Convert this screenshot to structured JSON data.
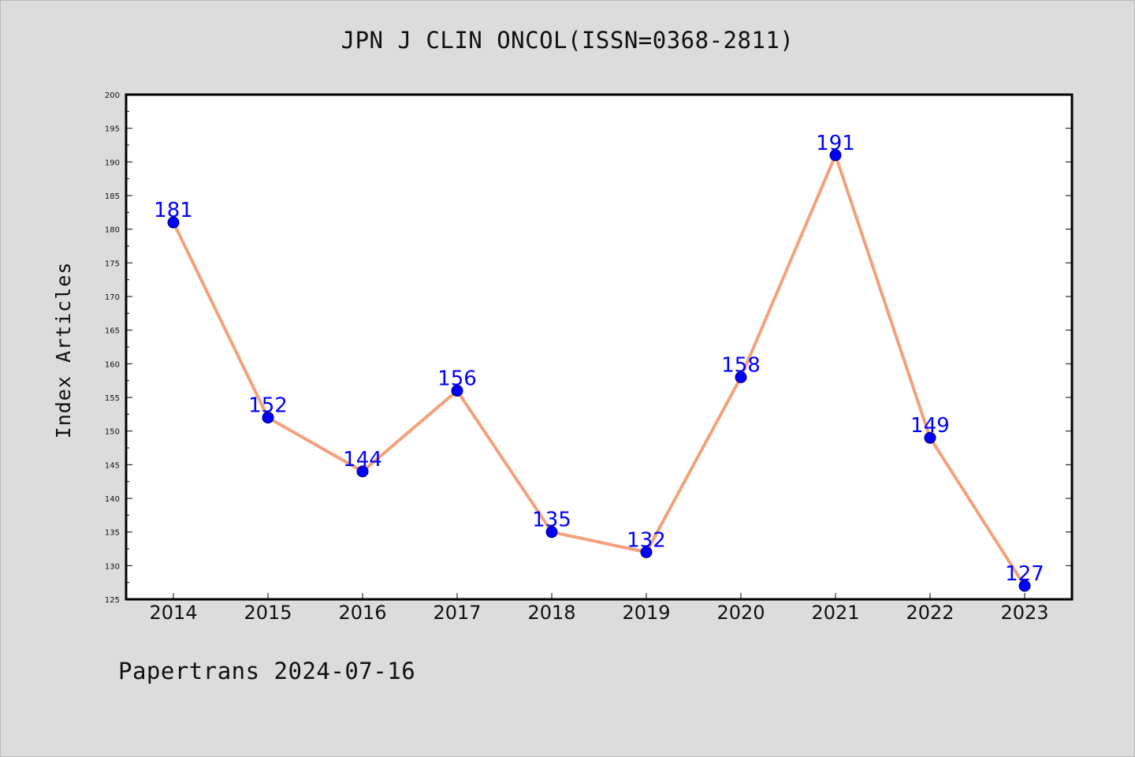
{
  "chart_data": {
    "type": "line",
    "title": "JPN J CLIN ONCOL(ISSN=0368-2811)",
    "ylabel": "Index Articles",
    "xlabel": "",
    "categories": [
      "2014",
      "2015",
      "2016",
      "2017",
      "2018",
      "2019",
      "2020",
      "2021",
      "2022",
      "2023"
    ],
    "values": [
      181,
      152,
      144,
      156,
      135,
      132,
      158,
      191,
      149,
      127
    ],
    "ylim": [
      125,
      200
    ],
    "yticks": [
      125,
      130,
      135,
      140,
      145,
      150,
      155,
      160,
      165,
      170,
      175,
      180,
      185,
      190,
      195,
      200
    ],
    "line_color": "#f4a07a",
    "marker_color": "#0000ff",
    "label_color": "#0000ff",
    "grid": false,
    "legend": "none"
  },
  "footer": {
    "note": "Papertrans 2024-07-16"
  }
}
